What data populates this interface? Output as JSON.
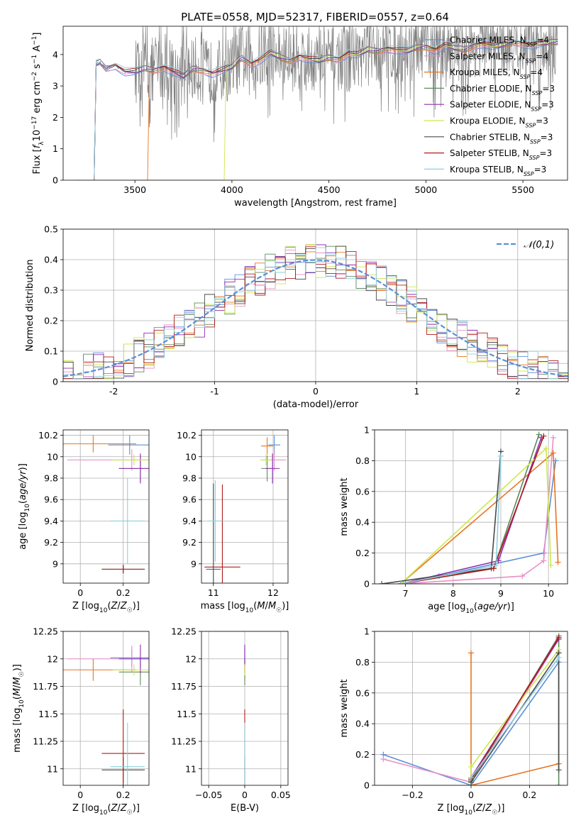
{
  "title": "PLATE=0558, MJD=52317, FIBERID=0557, z=0.64",
  "models": [
    {
      "name": "Chabrier MILES, N$_{SSP}$=4",
      "label": "Chabrier MILES, N",
      "sub": "SSP",
      "tail": "=4",
      "color": "#5b8fd9"
    },
    {
      "name": "Salpeter MILES, N$_{SSP}$=4",
      "label": "Salpeter MILES, N",
      "sub": "SSP",
      "tail": "=4",
      "color": "#e98fc6"
    },
    {
      "name": "Kroupa MILES, N$_{SSP}$=4",
      "label": "Kroupa MILES, N",
      "sub": "SSP",
      "tail": "=4",
      "color": "#e8741f"
    },
    {
      "name": "Chabrier ELODIE, N$_{SSP}$=3",
      "label": "Chabrier ELODIE, N",
      "sub": "SSP",
      "tail": "=3",
      "color": "#5e8a5e"
    },
    {
      "name": "Salpeter ELODIE, N$_{SSP}$=3",
      "label": "Salpeter ELODIE, N",
      "sub": "SSP",
      "tail": "=3",
      "color": "#8e2db0"
    },
    {
      "name": "Kroupa ELODIE, N$_{SSP}$=3",
      "label": "Kroupa ELODIE, N",
      "sub": "SSP",
      "tail": "=3",
      "color": "#cce84f"
    },
    {
      "name": "Chabrier STELIB, N$_{SSP}$=3",
      "label": "Chabrier STELIB, N",
      "sub": "SSP",
      "tail": "=3",
      "color": "#4a4a4a"
    },
    {
      "name": "Salpeter STELIB, N$_{SSP}$=3",
      "label": "Salpeter STELIB, N",
      "sub": "SSP",
      "tail": "=3",
      "color": "#b01c1c"
    },
    {
      "name": "Kroupa STELIB, N$_{SSP}$=3",
      "label": "Kroupa STELIB, N",
      "sub": "SSP",
      "tail": "=3",
      "color": "#8ecfe0"
    }
  ],
  "chart_data": [
    {
      "id": "spectrum",
      "type": "line",
      "xlabel": "wavelength [Angstrom, rest frame]",
      "ylabel": "Flux [f_λ 10^-17 erg cm^-2 s^-1 A^-1]",
      "xlim": [
        3130,
        5730
      ],
      "ylim": [
        0,
        4.9
      ],
      "xticks": [
        3500,
        4000,
        4500,
        5000,
        5500
      ],
      "yticks": [
        0,
        1,
        2,
        3,
        4
      ],
      "data_series": {
        "name": "data",
        "color": "#808080",
        "start": 3290,
        "end": 5680,
        "noisy_from": 3500
      },
      "model_continuum": {
        "x": [
          3290,
          3300,
          3320,
          3350,
          3400,
          3450,
          3500,
          3550,
          3600,
          3650,
          3700,
          3750,
          3800,
          3850,
          3900,
          3950,
          4000,
          4050,
          4100,
          4150,
          4200,
          4250,
          4300,
          4350,
          4400,
          4450,
          4500,
          4550,
          4600,
          4650,
          4700,
          4750,
          4800,
          4850,
          4900,
          4950,
          5000,
          5050,
          5100,
          5150,
          5200,
          5250,
          5300,
          5350,
          5400,
          5450,
          5500,
          5550,
          5600,
          5680
        ],
        "y": [
          0,
          3.7,
          3.75,
          3.55,
          3.65,
          3.45,
          3.45,
          3.55,
          3.5,
          3.6,
          3.45,
          3.3,
          3.55,
          3.5,
          3.4,
          3.5,
          3.6,
          3.9,
          3.7,
          3.85,
          4.05,
          3.9,
          3.8,
          3.95,
          3.85,
          3.8,
          3.9,
          3.85,
          4.05,
          4.0,
          4.15,
          4.1,
          4.2,
          4.15,
          4.1,
          4.2,
          4.25,
          4.15,
          4.3,
          4.2,
          4.15,
          4.3,
          4.35,
          4.25,
          4.3,
          4.4,
          4.35,
          4.3,
          4.35,
          4.4
        ]
      },
      "model_starts": [
        3290,
        3290,
        3565,
        3290,
        3290,
        3960,
        3290,
        3290,
        3290
      ]
    },
    {
      "id": "residuals",
      "type": "histogram",
      "xlabel": "(data-model)/error",
      "ylabel": "Normed distribution",
      "xlim": [
        -2.5,
        2.5
      ],
      "ylim": [
        0,
        0.5
      ],
      "xticks": [
        -2,
        -1,
        0,
        1,
        2
      ],
      "yticks": [
        0.0,
        0.1,
        0.2,
        0.3,
        0.4,
        0.5
      ],
      "reference_curve": {
        "name": "𝒩(0,1)",
        "color": "#5b8fd9"
      }
    },
    {
      "id": "age-vs-Z",
      "type": "errorbar",
      "xlabel": "Z [log10(Z/Z☉)]",
      "ylabel": "age [log10(age/yr)]",
      "xlim": [
        -0.08,
        0.32
      ],
      "ylim": [
        8.82,
        10.25
      ],
      "xticks": [
        0.0,
        0.2
      ],
      "yticks": [
        9.0,
        9.2,
        9.4,
        9.6,
        9.8,
        10.0,
        10.2
      ],
      "points": [
        {
          "m": 0,
          "x": 0.23,
          "xe": 0.1,
          "y": 10.11,
          "ye": 0.09
        },
        {
          "m": 1,
          "x": 0.24,
          "xe": 0.3,
          "y": 9.97,
          "ye": 0.1
        },
        {
          "m": 2,
          "x": 0.06,
          "xe": 0.2,
          "y": 10.12,
          "ye": 0.08
        },
        {
          "m": 3,
          "x": 0.28,
          "xe": 0.1,
          "y": 9.89,
          "ye": 0.12
        },
        {
          "m": 4,
          "x": 0.28,
          "xe": 0.1,
          "y": 9.89,
          "ye": 0.14
        },
        {
          "m": 5,
          "x": 0.25,
          "xe": 0.1,
          "y": 9.97,
          "ye": 0.05
        },
        {
          "m": 6,
          "x": 0.2,
          "xe": 0.1,
          "y": 8.95,
          "ye": 0.04
        },
        {
          "m": 7,
          "x": 0.2,
          "xe": 0.1,
          "y": 8.95,
          "ye": 0.04
        },
        {
          "m": 8,
          "x": 0.22,
          "xe": 0.08,
          "y": 9.4,
          "ye": 0.4
        }
      ]
    },
    {
      "id": "age-vs-mass",
      "type": "errorbar",
      "xlabel": "mass [log10(M/M☉)]",
      "ylabel": "",
      "xlim": [
        10.8,
        12.25
      ],
      "ylim": [
        8.82,
        10.25
      ],
      "xticks": [
        11,
        12
      ],
      "yticks": [
        9.0,
        9.2,
        9.4,
        9.6,
        9.8,
        10.0,
        10.2
      ],
      "points": [
        {
          "m": 0,
          "x": 12.02,
          "xe": 0.1,
          "y": 10.11,
          "ye": 0.09
        },
        {
          "m": 1,
          "x": 12.02,
          "xe": 0.2,
          "y": 9.97,
          "ye": 0.1
        },
        {
          "m": 2,
          "x": 11.9,
          "xe": 0.1,
          "y": 10.1,
          "ye": 0.08
        },
        {
          "m": 3,
          "x": 11.9,
          "xe": 0.1,
          "y": 9.89,
          "ye": 0.12
        },
        {
          "m": 4,
          "x": 11.99,
          "xe": 0.12,
          "y": 9.89,
          "ye": 0.14
        },
        {
          "m": 5,
          "x": 11.88,
          "xe": 0.1,
          "y": 9.97,
          "ye": 0.05
        },
        {
          "m": 6,
          "x": 11.0,
          "xe": 0.12,
          "y": 8.95,
          "ye": 0.8
        },
        {
          "m": 7,
          "x": 11.15,
          "xe": 0.3,
          "y": 8.97,
          "ye": 0.77
        },
        {
          "m": 8,
          "x": 11.03,
          "xe": 0.12,
          "y": 9.4,
          "ye": 0.38
        }
      ]
    },
    {
      "id": "weight-vs-age",
      "type": "line",
      "xlabel": "age [log10(age/yr)]",
      "ylabel": "mass weight",
      "xlim": [
        6.35,
        10.4
      ],
      "ylim": [
        0,
        1.0
      ],
      "xticks": [
        7,
        8,
        9,
        10
      ],
      "yticks": [
        0.0,
        0.2,
        0.4,
        0.6,
        0.8,
        1.0
      ],
      "series": [
        {
          "m": 0,
          "x": [
            7.0,
            7.7,
            9.9,
            10.15
          ],
          "y": [
            0.0,
            0.05,
            0.2,
            0.8
          ]
        },
        {
          "m": 1,
          "x": [
            6.9,
            9.45,
            9.9,
            10.1
          ],
          "y": [
            0.0,
            0.05,
            0.15,
            0.95
          ]
        },
        {
          "m": 2,
          "x": [
            6.9,
            10.1,
            10.2
          ],
          "y": [
            0.0,
            0.85,
            0.14
          ]
        },
        {
          "m": 3,
          "x": [
            6.9,
            8.85,
            9.8
          ],
          "y": [
            0.0,
            0.1,
            0.97
          ]
        },
        {
          "m": 4,
          "x": [
            6.9,
            8.95,
            9.85
          ],
          "y": [
            0.0,
            0.15,
            0.95
          ]
        },
        {
          "m": 5,
          "x": [
            6.9,
            9.95,
            10.05
          ],
          "y": [
            0.0,
            0.88,
            0.12
          ]
        },
        {
          "m": 6,
          "x": [
            6.5,
            8.8,
            9.0
          ],
          "y": [
            0.0,
            0.1,
            0.86
          ]
        },
        {
          "m": 7,
          "x": [
            6.9,
            8.85,
            9.9
          ],
          "y": [
            0.0,
            0.1,
            0.96
          ]
        },
        {
          "m": 8,
          "x": [
            6.9,
            8.9,
            9.0
          ],
          "y": [
            0.0,
            0.12,
            0.83
          ]
        }
      ]
    },
    {
      "id": "mass-vs-Z",
      "type": "errorbar",
      "xlabel": "Z [log10(Z/Z☉)]",
      "ylabel": "mass [log10(M/M☉)]",
      "xlim": [
        -0.08,
        0.32
      ],
      "ylim": [
        10.85,
        12.25
      ],
      "xticks": [
        0.0,
        0.2
      ],
      "yticks": [
        11.0,
        11.25,
        11.5,
        11.75,
        12.0,
        12.25
      ],
      "points": [
        {
          "m": 0,
          "x": 0.24,
          "xe": 0.1,
          "y": 12.01,
          "ye": 0.08
        },
        {
          "m": 1,
          "x": 0.24,
          "xe": 0.3,
          "y": 12.0,
          "ye": 0.12
        },
        {
          "m": 2,
          "x": 0.06,
          "xe": 0.2,
          "y": 11.9,
          "ye": 0.1
        },
        {
          "m": 3,
          "x": 0.28,
          "xe": 0.1,
          "y": 11.88,
          "ye": 0.12
        },
        {
          "m": 4,
          "x": 0.28,
          "xe": 0.1,
          "y": 12.0,
          "ye": 0.13
        },
        {
          "m": 5,
          "x": 0.25,
          "xe": 0.1,
          "y": 11.9,
          "ye": 0.05
        },
        {
          "m": 6,
          "x": 0.2,
          "xe": 0.1,
          "y": 10.99,
          "ye": 0.12
        },
        {
          "m": 7,
          "x": 0.2,
          "xe": 0.1,
          "y": 11.14,
          "ye": 0.4
        },
        {
          "m": 8,
          "x": 0.22,
          "xe": 0.08,
          "y": 11.02,
          "ye": 0.4
        }
      ]
    },
    {
      "id": "mass-vs-EBV",
      "type": "errorbar",
      "xlabel": "E(B-V)",
      "ylabel": "",
      "xlim": [
        -0.06,
        0.06
      ],
      "ylim": [
        10.85,
        12.25
      ],
      "xticks": [
        -0.05,
        0.0,
        0.05
      ],
      "yticks": [
        11.0,
        11.25,
        11.5,
        11.75,
        12.0,
        12.25
      ],
      "points": [
        {
          "m": 0,
          "x": 0,
          "xe": 0,
          "y": 12.01,
          "ye": 0.08
        },
        {
          "m": 1,
          "x": 0,
          "xe": 0,
          "y": 12.0,
          "ye": 0.12
        },
        {
          "m": 2,
          "x": 0,
          "xe": 0,
          "y": 11.9,
          "ye": 0.1
        },
        {
          "m": 3,
          "x": 0,
          "xe": 0,
          "y": 11.88,
          "ye": 0.12
        },
        {
          "m": 4,
          "x": 0,
          "xe": 0,
          "y": 12.0,
          "ye": 0.13
        },
        {
          "m": 5,
          "x": 0,
          "xe": 0,
          "y": 11.9,
          "ye": 0.05
        },
        {
          "m": 6,
          "x": 0,
          "xe": 0,
          "y": 10.99,
          "ye": 0.12
        },
        {
          "m": 7,
          "x": 0,
          "xe": 0,
          "y": 11.14,
          "ye": 0.4
        },
        {
          "m": 8,
          "x": 0,
          "xe": 0,
          "y": 11.02,
          "ye": 0.4
        }
      ]
    },
    {
      "id": "weight-vs-Z",
      "type": "line",
      "xlabel": "Z [log10(Z/Z☉)]",
      "ylabel": "mass weight",
      "xlim": [
        -0.33,
        0.33
      ],
      "ylim": [
        0,
        1.0
      ],
      "xticks": [
        -0.2,
        0.0,
        0.2
      ],
      "yticks": [
        0.0,
        0.2,
        0.4,
        0.6,
        0.8,
        1.0
      ],
      "series": [
        {
          "m": 0,
          "x": [
            -0.3,
            0.0,
            0.3
          ],
          "y": [
            0.2,
            0.0,
            0.8
          ]
        },
        {
          "m": 1,
          "x": [
            -0.3,
            0.0,
            0.3
          ],
          "y": [
            0.17,
            0.02,
            0.95
          ]
        },
        {
          "m": 2,
          "x": [
            0.0,
            0.0,
            0.3
          ],
          "y": [
            0.86,
            0.0,
            0.14
          ]
        },
        {
          "m": 3,
          "x": [
            0.0,
            0.3,
            0.3
          ],
          "y": [
            0.03,
            0.97,
            0.0
          ]
        },
        {
          "m": 4,
          "x": [
            0.0,
            0.3
          ],
          "y": [
            0.05,
            0.95
          ]
        },
        {
          "m": 5,
          "x": [
            0.0,
            0.0,
            0.3
          ],
          "y": [
            0.0,
            0.12,
            0.88
          ]
        },
        {
          "m": 6,
          "x": [
            0.0,
            0.3,
            0.3
          ],
          "y": [
            0.02,
            0.86,
            0.1
          ]
        },
        {
          "m": 7,
          "x": [
            0.0,
            0.3
          ],
          "y": [
            0.04,
            0.96
          ]
        },
        {
          "m": 8,
          "x": [
            0.0,
            0.3
          ],
          "y": [
            0.05,
            0.83
          ]
        }
      ]
    }
  ]
}
